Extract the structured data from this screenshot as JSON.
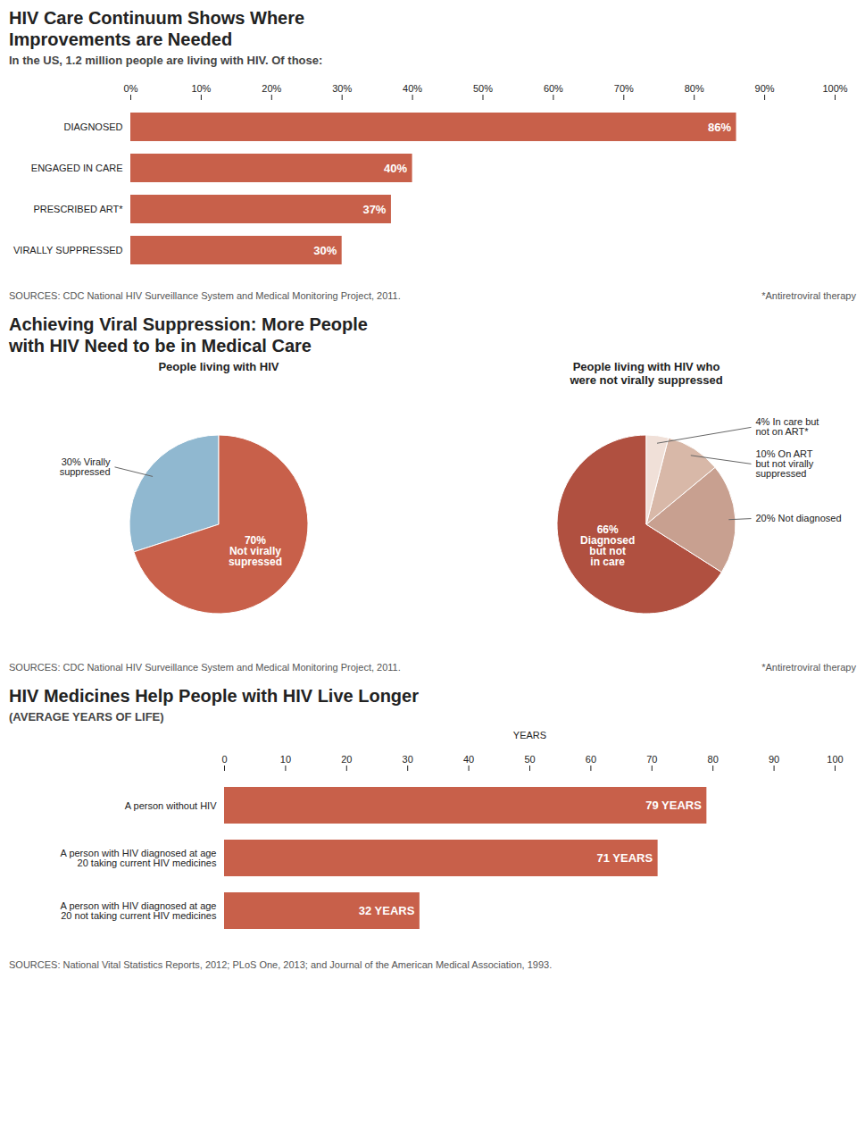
{
  "chart_data": [
    {
      "type": "bar",
      "orientation": "horizontal",
      "title": "HIV Care Continuum Shows Where\nImprovements are Needed",
      "subtitle": "In the US, 1.2 million people are living with HIV.  Of those:",
      "categories": [
        "DIAGNOSED",
        "ENGAGED IN CARE",
        "PRESCRIBED ART*",
        "VIRALLY SUPPRESSED"
      ],
      "values": [
        86,
        40,
        37,
        30
      ],
      "value_labels": [
        "86%",
        "40%",
        "37%",
        "30%"
      ],
      "data_labels": true,
      "color": "#c8604a",
      "xlim": [
        0,
        100
      ],
      "xticks": [
        {
          "value": 0,
          "label": "0%"
        },
        {
          "value": 10,
          "label": "10%"
        },
        {
          "value": 20,
          "label": "20%"
        },
        {
          "value": 30,
          "label": "30%"
        },
        {
          "value": 40,
          "label": "40%"
        },
        {
          "value": 50,
          "label": "50%"
        },
        {
          "value": 60,
          "label": "60%"
        },
        {
          "value": 70,
          "label": "70%"
        },
        {
          "value": 80,
          "label": "80%"
        },
        {
          "value": 90,
          "label": "90%"
        },
        {
          "value": 100,
          "label": "100%"
        }
      ],
      "annotations": [
        "SOURCES: CDC National HIV Surveillance System and Medical Monitoring Project, 2011.",
        "*Antiretroviral therapy"
      ]
    },
    {
      "type": "pie",
      "title": "Achieving Viral Suppression: More People\nwith HIV Need to be in Medical Care",
      "subtitle": "People living with HIV",
      "values": [
        30,
        70
      ],
      "value_labels": [
        "30% Virally\nsuppressed",
        "70%\nNot virally\nsupressed"
      ],
      "data_labels": true,
      "colors": [
        "#90b8d0",
        "#c8604a"
      ]
    },
    {
      "type": "pie",
      "title": "People living with HIV who\nwere not virally suppressed",
      "values": [
        66,
        20,
        10,
        4
      ],
      "value_labels": [
        "66%\nDiagnosed\nbut not\nin care",
        "20% Not diagnosed",
        "10% On ART\nbut not virally\nsuppressed",
        "4% In care but\nnot on ART*"
      ],
      "data_labels": true,
      "colors": [
        "#b05040",
        "#c8a090",
        "#d8b8a8",
        "#f0e0d8"
      ],
      "annotations": [
        "SOURCES: CDC National HIV Surveillance System and Medical Monitoring Project, 2011.",
        "*Antiretroviral therapy"
      ]
    },
    {
      "type": "bar",
      "orientation": "horizontal",
      "title": "HIV Medicines Help People with HIV Live Longer",
      "subtitle": "(AVERAGE YEARS OF LIFE)",
      "categories": [
        "A person without HIV",
        "A person with HIV diagnosed at age\n20 taking current HIV medicines",
        "A person with HIV diagnosed at age\n20 not taking current HIV medicines"
      ],
      "values": [
        79,
        71,
        32
      ],
      "value_labels": [
        "79 YEARS",
        "71 YEARS",
        "32 YEARS"
      ],
      "data_labels": true,
      "color": "#c8604a",
      "xlabel": "YEARS",
      "xlim": [
        0,
        100
      ],
      "xticks": [
        0,
        10,
        20,
        30,
        40,
        50,
        60,
        70,
        80,
        90,
        100
      ],
      "annotations": [
        "SOURCES: National Vital Statistics Reports, 2012; PLoS One, 2013; and Journal of the American Medical Association, 1993."
      ]
    }
  ]
}
